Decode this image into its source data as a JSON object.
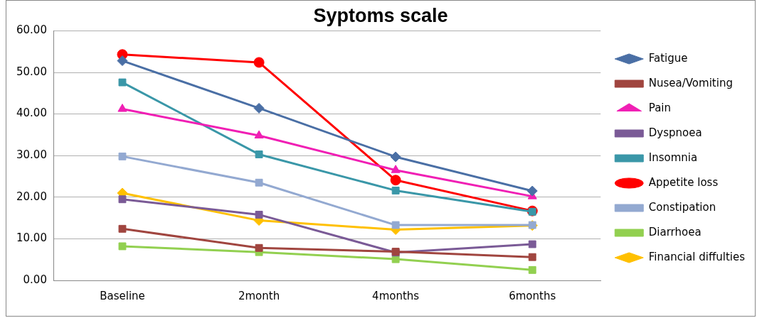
{
  "chart_data": {
    "type": "line",
    "title": "Syptoms scale",
    "categories": [
      "Baseline",
      "2month",
      "4months",
      "6months"
    ],
    "series": [
      {
        "name": "Fatigue",
        "color": "#4a6fa5",
        "marker": "diamond",
        "values": [
          52.8,
          41.4,
          29.7,
          21.5
        ]
      },
      {
        "name": "Nusea/Vomiting",
        "color": "#a0453f",
        "marker": "square",
        "values": [
          12.4,
          7.8,
          6.9,
          5.6
        ]
      },
      {
        "name": "Pain",
        "color": "#f01fb4",
        "marker": "triangle",
        "values": [
          41.2,
          34.8,
          26.5,
          20.2
        ]
      },
      {
        "name": "Dyspnoea",
        "color": "#7a5a96",
        "marker": "square",
        "values": [
          19.5,
          15.8,
          6.7,
          8.7
        ]
      },
      {
        "name": "Insomnia",
        "color": "#3a97a8",
        "marker": "square",
        "values": [
          47.6,
          30.3,
          21.6,
          16.5
        ]
      },
      {
        "name": "Appetite loss",
        "color": "#ff0000",
        "marker": "circle",
        "values": [
          54.3,
          52.4,
          24.1,
          16.7
        ]
      },
      {
        "name": "Constipation",
        "color": "#93a9d1",
        "marker": "square",
        "values": [
          29.8,
          23.5,
          13.3,
          13.3
        ]
      },
      {
        "name": "Diarrhoea",
        "color": "#92d050",
        "marker": "square",
        "values": [
          8.2,
          6.8,
          5.1,
          2.5
        ]
      },
      {
        "name": "Financial diffulties",
        "color": "#ffc000",
        "marker": "diamond",
        "values": [
          21.0,
          14.4,
          12.2,
          13.2
        ]
      }
    ],
    "ylim": [
      0,
      60
    ],
    "yticks": [
      {
        "value": 0,
        "label": "0.00"
      },
      {
        "value": 10,
        "label": "10.00"
      },
      {
        "value": 20,
        "label": "20.00"
      },
      {
        "value": 30,
        "label": "30.00"
      },
      {
        "value": 40,
        "label": "40.00"
      },
      {
        "value": 50,
        "label": "50.00"
      },
      {
        "value": 60,
        "label": "60.00"
      }
    ],
    "grid": "y",
    "legend": "right",
    "line_style": "solid"
  }
}
